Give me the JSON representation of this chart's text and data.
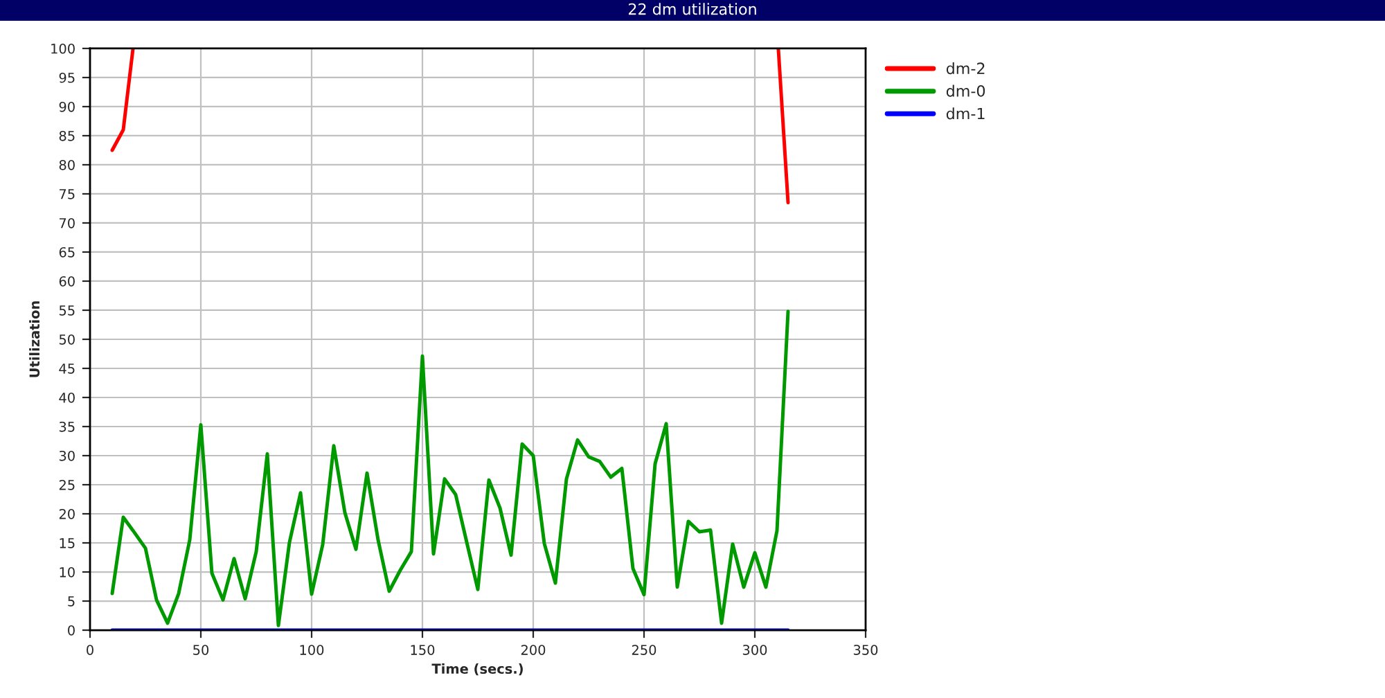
{
  "chart_data": {
    "type": "line",
    "title": "22 dm utilization",
    "xlabel": "Time (secs.)",
    "ylabel": "Utilization",
    "x": [
      10,
      15,
      20,
      25,
      30,
      35,
      40,
      45,
      50,
      55,
      60,
      65,
      70,
      75,
      80,
      85,
      90,
      95,
      100,
      105,
      110,
      115,
      120,
      125,
      130,
      135,
      140,
      145,
      150,
      155,
      160,
      165,
      170,
      175,
      180,
      185,
      190,
      195,
      200,
      205,
      210,
      215,
      220,
      225,
      230,
      235,
      240,
      245,
      250,
      255,
      260,
      265,
      270,
      275,
      280,
      285,
      290,
      295,
      300,
      305,
      310,
      315
    ],
    "series": [
      {
        "name": "dm-2",
        "color": "#ff0000",
        "x": [
          10,
          15,
          19.4,
          165,
          310.6,
          315
        ],
        "values": [
          82.5,
          86,
          100,
          null,
          100,
          73.5
        ]
      },
      {
        "name": "dm-0",
        "color": "#009900",
        "values": [
          6.3,
          19.4,
          16.8,
          14.1,
          5.2,
          1.2,
          6.3,
          15.5,
          35.3,
          9.8,
          5.2,
          12.3,
          5.4,
          13.5,
          30.3,
          0.8,
          15.1,
          23.6,
          6.2,
          14.7,
          31.7,
          20.2,
          13.9,
          27.0,
          15.5,
          6.7,
          10.3,
          13.5,
          47.1,
          13.1,
          26.0,
          23.3,
          15.1,
          7.0,
          25.8,
          21.0,
          12.9,
          32.0,
          30.0,
          14.9,
          8.1,
          26.0,
          32.7,
          29.8,
          29.0,
          26.3,
          27.8,
          10.6,
          6.1,
          28.6,
          35.5,
          7.4,
          18.7,
          16.9,
          17.2,
          1.2,
          14.8,
          7.4,
          13.3,
          7.4,
          17.1,
          54.8
        ]
      },
      {
        "name": "dm-1",
        "color": "#0000ff",
        "values": [
          0,
          0,
          0,
          0,
          0,
          0,
          0,
          0,
          0,
          0,
          0,
          0,
          0,
          0,
          0,
          0,
          0,
          0,
          0,
          0,
          0,
          0,
          0,
          0,
          0,
          0,
          0,
          0,
          0,
          0,
          0,
          0,
          0,
          0,
          0,
          0,
          0,
          0,
          0,
          0,
          0,
          0,
          0,
          0,
          0,
          0,
          0,
          0,
          0,
          0,
          0,
          0,
          0,
          0,
          0,
          0,
          0,
          0,
          0,
          0,
          0,
          0
        ]
      }
    ],
    "xlim": [
      0,
      350
    ],
    "xticks": [
      0,
      50,
      100,
      150,
      200,
      250,
      300,
      350
    ],
    "ylim": [
      0,
      100
    ],
    "yticks": [
      0,
      5,
      10,
      15,
      20,
      25,
      30,
      35,
      40,
      45,
      50,
      55,
      60,
      65,
      70,
      75,
      80,
      85,
      90,
      95,
      100
    ],
    "grid": true,
    "legend": "right",
    "marker": "none",
    "line_style": "solid"
  }
}
